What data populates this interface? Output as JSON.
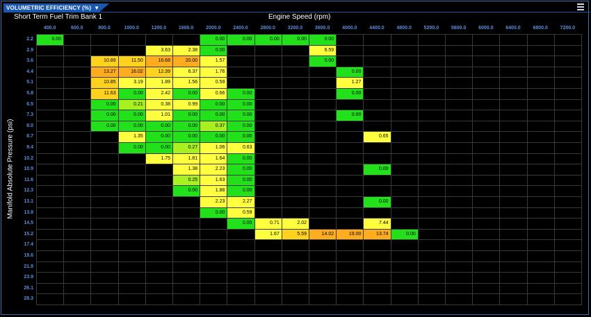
{
  "window": {
    "tab_title": "VOLUMETRIC EFFICIENCY (%)",
    "tab_arrow": "▼",
    "menu_icon": "hamburger-menu-icon"
  },
  "table": {
    "subtitle": "Short Term Fuel Trim Bank 1",
    "x_title": "Engine Speed (rpm)",
    "y_title": "Manifold Absolute Pressure (psi)",
    "x_ticks": [
      "400.0",
      "600.0",
      "800.0",
      "1000.0",
      "1200.0",
      "1600.0",
      "2000.0",
      "2400.0",
      "2800.0",
      "3200.0",
      "3600.0",
      "4000.0",
      "4400.0",
      "4800.0",
      "5200.0",
      "5600.0",
      "6000.0",
      "6400.0",
      "6800.0",
      "7200.0"
    ],
    "y_ticks": [
      "2.2",
      "2.9",
      "3.6",
      "4.4",
      "5.1",
      "5.8",
      "6.5",
      "7.3",
      "8.0",
      "8.7",
      "9.4",
      "10.2",
      "10.9",
      "11.6",
      "12.3",
      "13.1",
      "13.8",
      "14.5",
      "15.2",
      "17.4",
      "19.6",
      "21.8",
      "23.9",
      "26.1",
      "28.3"
    ],
    "colors": {
      "green": "#22e01a",
      "lime": "#a8f020",
      "yellow": "#ffff40",
      "gold": "#ffd21e",
      "orange": "#ffac1e",
      "grid": "#3a3a3a",
      "tick": "#5b8dd9"
    },
    "values": [
      [
        "0.00",
        null,
        null,
        null,
        null,
        null,
        "0.00",
        "0.00",
        "0.00",
        "0.00",
        "0.00",
        null,
        null,
        null,
        null,
        null,
        null,
        null,
        null,
        null
      ],
      [
        null,
        null,
        null,
        null,
        "3.63",
        "2.38",
        "0.00",
        null,
        null,
        null,
        "6.59",
        null,
        null,
        null,
        null,
        null,
        null,
        null,
        null,
        null
      ],
      [
        null,
        null,
        "10.89",
        "11.50",
        "16.68",
        "20.00",
        "1.57",
        null,
        null,
        null,
        "0.00",
        null,
        null,
        null,
        null,
        null,
        null,
        null,
        null,
        null
      ],
      [
        null,
        null,
        "13.27",
        "16.02",
        "12.39",
        "6.37",
        "1.76",
        null,
        null,
        null,
        null,
        "0.00",
        null,
        null,
        null,
        null,
        null,
        null,
        null,
        null
      ],
      [
        null,
        null,
        "10.85",
        "3.19",
        "1.89",
        "1.56",
        "0.59",
        null,
        null,
        null,
        null,
        "1.27",
        null,
        null,
        null,
        null,
        null,
        null,
        null,
        null
      ],
      [
        null,
        null,
        "11.63",
        "0.00",
        "2.42",
        "0.00",
        "0.66",
        "0.00",
        null,
        null,
        null,
        "0.00",
        null,
        null,
        null,
        null,
        null,
        null,
        null,
        null
      ],
      [
        null,
        null,
        "0.00",
        "0.21",
        "0.38",
        "0.99",
        "0.00",
        "0.00",
        null,
        null,
        null,
        null,
        null,
        null,
        null,
        null,
        null,
        null,
        null,
        null
      ],
      [
        null,
        null,
        "0.00",
        "0.00",
        "1.01",
        "0.00",
        "0.00",
        "0.00",
        null,
        null,
        null,
        "0.00",
        null,
        null,
        null,
        null,
        null,
        null,
        null,
        null
      ],
      [
        null,
        null,
        "0.00",
        "0.00",
        "0.00",
        "0.00",
        "0.37",
        "0.00",
        null,
        null,
        null,
        null,
        null,
        null,
        null,
        null,
        null,
        null,
        null,
        null
      ],
      [
        null,
        null,
        null,
        "1.35",
        "0.00",
        "0.00",
        "0.00",
        "0.00",
        null,
        null,
        null,
        null,
        "0.65",
        null,
        null,
        null,
        null,
        null,
        null,
        null
      ],
      [
        null,
        null,
        null,
        "0.00",
        "0.00",
        "0.27",
        "1.06",
        "0.63",
        null,
        null,
        null,
        null,
        null,
        null,
        null,
        null,
        null,
        null,
        null,
        null
      ],
      [
        null,
        null,
        null,
        null,
        "1.75",
        "1.81",
        "1.64",
        "0.00",
        null,
        null,
        null,
        null,
        null,
        null,
        null,
        null,
        null,
        null,
        null,
        null
      ],
      [
        null,
        null,
        null,
        null,
        null,
        "1.38",
        "2.23",
        "0.00",
        null,
        null,
        null,
        null,
        "0.00",
        null,
        null,
        null,
        null,
        null,
        null,
        null
      ],
      [
        null,
        null,
        null,
        null,
        null,
        "0.25",
        "1.63",
        "0.00",
        null,
        null,
        null,
        null,
        null,
        null,
        null,
        null,
        null,
        null,
        null,
        null
      ],
      [
        null,
        null,
        null,
        null,
        null,
        "0.00",
        "1.88",
        "0.00",
        null,
        null,
        null,
        null,
        null,
        null,
        null,
        null,
        null,
        null,
        null,
        null
      ],
      [
        null,
        null,
        null,
        null,
        null,
        null,
        "2.23",
        "2.27",
        null,
        null,
        null,
        null,
        "0.00",
        null,
        null,
        null,
        null,
        null,
        null,
        null
      ],
      [
        null,
        null,
        null,
        null,
        null,
        null,
        "0.00",
        "0.59",
        null,
        null,
        null,
        null,
        null,
        null,
        null,
        null,
        null,
        null,
        null,
        null
      ],
      [
        null,
        null,
        null,
        null,
        null,
        null,
        null,
        "0.00",
        "0.71",
        "2.02",
        null,
        null,
        "7.44",
        null,
        null,
        null,
        null,
        null,
        null,
        null
      ],
      [
        null,
        null,
        null,
        null,
        null,
        null,
        null,
        null,
        "1.67",
        "5.59",
        "14.02",
        "19.00",
        "13.74",
        "0.00",
        null,
        null,
        null,
        null,
        null,
        null
      ],
      [
        null,
        null,
        null,
        null,
        null,
        null,
        null,
        null,
        null,
        null,
        null,
        null,
        null,
        null,
        null,
        null,
        null,
        null,
        null,
        null
      ],
      [
        null,
        null,
        null,
        null,
        null,
        null,
        null,
        null,
        null,
        null,
        null,
        null,
        null,
        null,
        null,
        null,
        null,
        null,
        null,
        null
      ],
      [
        null,
        null,
        null,
        null,
        null,
        null,
        null,
        null,
        null,
        null,
        null,
        null,
        null,
        null,
        null,
        null,
        null,
        null,
        null,
        null
      ],
      [
        null,
        null,
        null,
        null,
        null,
        null,
        null,
        null,
        null,
        null,
        null,
        null,
        null,
        null,
        null,
        null,
        null,
        null,
        null,
        null
      ],
      [
        null,
        null,
        null,
        null,
        null,
        null,
        null,
        null,
        null,
        null,
        null,
        null,
        null,
        null,
        null,
        null,
        null,
        null,
        null,
        null
      ],
      [
        null,
        null,
        null,
        null,
        null,
        null,
        null,
        null,
        null,
        null,
        null,
        null,
        null,
        null,
        null,
        null,
        null,
        null,
        null,
        null
      ]
    ],
    "cell_colors": [
      [
        "green",
        null,
        null,
        null,
        null,
        null,
        "green",
        "green",
        "green",
        "green",
        "green",
        null,
        null,
        null,
        null,
        null,
        null,
        null,
        null,
        null
      ],
      [
        null,
        null,
        null,
        null,
        "yellow",
        "yellow",
        "green",
        null,
        null,
        null,
        "yellow",
        null,
        null,
        null,
        null,
        null,
        null,
        null,
        null,
        null
      ],
      [
        null,
        null,
        "gold",
        "gold",
        "orange",
        "orange",
        "yellow",
        null,
        null,
        null,
        "green",
        null,
        null,
        null,
        null,
        null,
        null,
        null,
        null,
        null
      ],
      [
        null,
        null,
        "orange",
        "orange",
        "gold",
        "yellow",
        "yellow",
        null,
        null,
        null,
        null,
        "green",
        null,
        null,
        null,
        null,
        null,
        null,
        null,
        null
      ],
      [
        null,
        null,
        "gold",
        "yellow",
        "yellow",
        "yellow",
        "yellow",
        null,
        null,
        null,
        null,
        "yellow",
        null,
        null,
        null,
        null,
        null,
        null,
        null,
        null
      ],
      [
        null,
        null,
        "gold",
        "green",
        "yellow",
        "green",
        "yellow",
        "green",
        null,
        null,
        null,
        "green",
        null,
        null,
        null,
        null,
        null,
        null,
        null,
        null
      ],
      [
        null,
        null,
        "green",
        "lime",
        "yellow",
        "yellow",
        "green",
        "green",
        null,
        null,
        null,
        null,
        null,
        null,
        null,
        null,
        null,
        null,
        null,
        null
      ],
      [
        null,
        null,
        "green",
        "green",
        "yellow",
        "green",
        "green",
        "green",
        null,
        null,
        null,
        "green",
        null,
        null,
        null,
        null,
        null,
        null,
        null,
        null
      ],
      [
        null,
        null,
        "green",
        "green",
        "green",
        "green",
        "lime",
        "green",
        null,
        null,
        null,
        null,
        null,
        null,
        null,
        null,
        null,
        null,
        null,
        null
      ],
      [
        null,
        null,
        null,
        "yellow",
        "green",
        "green",
        "green",
        "green",
        null,
        null,
        null,
        null,
        "yellow",
        null,
        null,
        null,
        null,
        null,
        null,
        null
      ],
      [
        null,
        null,
        null,
        "green",
        "green",
        "lime",
        "yellow",
        "yellow",
        null,
        null,
        null,
        null,
        null,
        null,
        null,
        null,
        null,
        null,
        null,
        null
      ],
      [
        null,
        null,
        null,
        null,
        "yellow",
        "yellow",
        "yellow",
        "green",
        null,
        null,
        null,
        null,
        null,
        null,
        null,
        null,
        null,
        null,
        null,
        null
      ],
      [
        null,
        null,
        null,
        null,
        null,
        "yellow",
        "yellow",
        "green",
        null,
        null,
        null,
        null,
        "green",
        null,
        null,
        null,
        null,
        null,
        null,
        null
      ],
      [
        null,
        null,
        null,
        null,
        null,
        "lime",
        "yellow",
        "green",
        null,
        null,
        null,
        null,
        null,
        null,
        null,
        null,
        null,
        null,
        null,
        null
      ],
      [
        null,
        null,
        null,
        null,
        null,
        "green",
        "yellow",
        "green",
        null,
        null,
        null,
        null,
        null,
        null,
        null,
        null,
        null,
        null,
        null,
        null
      ],
      [
        null,
        null,
        null,
        null,
        null,
        null,
        "yellow",
        "yellow",
        null,
        null,
        null,
        null,
        "green",
        null,
        null,
        null,
        null,
        null,
        null,
        null
      ],
      [
        null,
        null,
        null,
        null,
        null,
        null,
        "green",
        "yellow",
        null,
        null,
        null,
        null,
        null,
        null,
        null,
        null,
        null,
        null,
        null,
        null
      ],
      [
        null,
        null,
        null,
        null,
        null,
        null,
        null,
        "green",
        "yellow",
        "yellow",
        null,
        null,
        "yellow",
        null,
        null,
        null,
        null,
        null,
        null,
        null
      ],
      [
        null,
        null,
        null,
        null,
        null,
        null,
        null,
        null,
        "yellow",
        "gold",
        "orange",
        "orange",
        "orange",
        "green",
        null,
        null,
        null,
        null,
        null,
        null
      ],
      [
        null,
        null,
        null,
        null,
        null,
        null,
        null,
        null,
        null,
        null,
        null,
        null,
        null,
        null,
        null,
        null,
        null,
        null,
        null,
        null
      ],
      [
        null,
        null,
        null,
        null,
        null,
        null,
        null,
        null,
        null,
        null,
        null,
        null,
        null,
        null,
        null,
        null,
        null,
        null,
        null,
        null
      ],
      [
        null,
        null,
        null,
        null,
        null,
        null,
        null,
        null,
        null,
        null,
        null,
        null,
        null,
        null,
        null,
        null,
        null,
        null,
        null,
        null
      ],
      [
        null,
        null,
        null,
        null,
        null,
        null,
        null,
        null,
        null,
        null,
        null,
        null,
        null,
        null,
        null,
        null,
        null,
        null,
        null,
        null
      ],
      [
        null,
        null,
        null,
        null,
        null,
        null,
        null,
        null,
        null,
        null,
        null,
        null,
        null,
        null,
        null,
        null,
        null,
        null,
        null,
        null
      ],
      [
        null,
        null,
        null,
        null,
        null,
        null,
        null,
        null,
        null,
        null,
        null,
        null,
        null,
        null,
        null,
        null,
        null,
        null,
        null,
        null
      ]
    ]
  }
}
